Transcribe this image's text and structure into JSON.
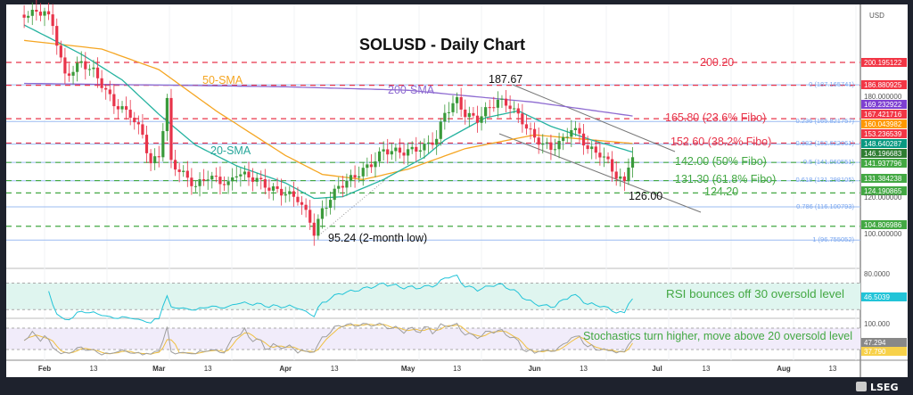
{
  "title": "SOLUSD - Daily Chart",
  "currency": "USD",
  "brand": "LSEG",
  "colors": {
    "up": "#3a9a3a",
    "down": "#e8344a",
    "sma20": "#26b3a0",
    "sma50": "#f5a623",
    "sma200": "#8e6bd1",
    "red": "#e8344a",
    "green": "#43a843",
    "fibo": "#9bbcf2",
    "rsi": "#22c4d8",
    "stochK": "#9e9e9e",
    "stochD": "#f0c040"
  },
  "annotations": {
    "level_200": "200.20",
    "sma50": "50-SMA",
    "sma200": "200-SMA",
    "sma20": "20-SMA",
    "high": "187.67",
    "fibo236": "165.80 (23.6% Fibo)",
    "fibo382": "152.60 (38.2% Fibo)",
    "fibo50": "142.00 (50% Fibo)",
    "fibo618": "131.30 (61.8% Fibo)",
    "level_124": "124.20",
    "low_recent": "126.00",
    "low_2m": "95.24 (2-month low)",
    "rsi_note": "RSI bounces off 30 oversold level",
    "stoch_note": "Stochastics turn higher, move above 20 oversold level"
  },
  "fibo_labels": [
    "0 (187.165741)",
    "0.236 (165.821757)",
    "0.382 (152.622061)",
    "0.5 (141.960551)",
    "0.618 (131.298105)",
    "0.786 (116.100793)",
    "1 (96.755052)"
  ],
  "price_axis": {
    "labels": [
      {
        "text": "200.195122",
        "color": "#f23645"
      },
      {
        "text": "186.880925",
        "color": "#f23645"
      },
      {
        "text": "180.000000",
        "color": ""
      },
      {
        "text": "169.232922",
        "color": "#7e3fd1"
      },
      {
        "text": "167.421716",
        "color": "#f23645"
      },
      {
        "text": "160.043982",
        "color": "#ff9800"
      },
      {
        "text": "153.236539",
        "color": "#f23645"
      },
      {
        "text": "148.640287",
        "color": "#089981"
      },
      {
        "text": "146.196683",
        "color": "#2e7d32"
      },
      {
        "text": "141.937796",
        "color": "#43a843"
      },
      {
        "text": "131.384238",
        "color": "#43a843"
      },
      {
        "text": "124.190865",
        "color": "#43a843"
      },
      {
        "text": "120.000000",
        "color": ""
      },
      {
        "text": "104.806986",
        "color": "#43a843"
      },
      {
        "text": "100.000000",
        "color": ""
      }
    ],
    "rsi_labels": [
      {
        "text": "80.0000",
        "color": ""
      },
      {
        "text": "46.5039",
        "color": "#22c4d8"
      }
    ],
    "stoch_labels": [
      {
        "text": "100.000",
        "color": ""
      },
      {
        "text": "47.294",
        "color": "#888888"
      },
      {
        "text": "37.790",
        "color": "#f7d14a"
      }
    ]
  },
  "time_axis": [
    {
      "label": "Feb",
      "date": "02-01",
      "bold": true
    },
    {
      "label": "13",
      "date": "02-13"
    },
    {
      "label": "Mar",
      "date": "03-01",
      "bold": true
    },
    {
      "label": "13",
      "date": "03-13"
    },
    {
      "label": "Apr",
      "date": "04-01",
      "bold": true
    },
    {
      "label": "13",
      "date": "04-13"
    },
    {
      "label": "May",
      "date": "05-01",
      "bold": true
    },
    {
      "label": "13",
      "date": "05-13"
    },
    {
      "label": "Jun",
      "date": "06-01",
      "bold": true
    },
    {
      "label": "13",
      "date": "06-13"
    },
    {
      "label": "Jul",
      "date": "07-01",
      "bold": true
    },
    {
      "label": "13",
      "date": "07-13"
    },
    {
      "label": "Aug",
      "date": "08-01",
      "bold": true
    },
    {
      "label": "13",
      "date": "08-13"
    }
  ],
  "chart_data": {
    "type": "candlestick",
    "title": "SOLUSD - Daily Chart",
    "y_unit": "USD",
    "ylim": [
      92,
      235
    ],
    "horizontal_levels": [
      {
        "value": 200.2,
        "color": "red"
      },
      {
        "value": 186.88,
        "color": "red"
      },
      {
        "value": 167.42,
        "color": "red"
      },
      {
        "value": 153.24,
        "color": "red"
      },
      {
        "value": 141.94,
        "color": "green"
      },
      {
        "value": 131.38,
        "color": "green"
      },
      {
        "value": 124.19,
        "color": "green"
      },
      {
        "value": 104.81,
        "color": "green"
      }
    ],
    "fibo_values": [
      187.17,
      165.82,
      152.62,
      141.96,
      131.3,
      116.1,
      96.76
    ],
    "closes_approx": [
      [
        "01-27",
        228
      ],
      [
        "02-01",
        230
      ],
      [
        "02-03",
        222
      ],
      [
        "02-06",
        192
      ],
      [
        "02-10",
        200
      ],
      [
        "02-13",
        195
      ],
      [
        "02-18",
        176
      ],
      [
        "02-22",
        170
      ],
      [
        "02-25",
        158
      ],
      [
        "02-27",
        141
      ],
      [
        "03-01",
        146
      ],
      [
        "03-03",
        178
      ],
      [
        "03-04",
        142
      ],
      [
        "03-10",
        128
      ],
      [
        "03-13",
        134
      ],
      [
        "03-18",
        129
      ],
      [
        "03-20",
        136
      ],
      [
        "03-25",
        132
      ],
      [
        "03-28",
        127
      ],
      [
        "04-01",
        124
      ],
      [
        "04-04",
        121
      ],
      [
        "04-07",
        108
      ],
      [
        "04-08",
        101
      ],
      [
        "04-10",
        114
      ],
      [
        "04-14",
        128
      ],
      [
        "04-18",
        134
      ],
      [
        "04-22",
        141
      ],
      [
        "04-25",
        149
      ],
      [
        "04-30",
        148
      ],
      [
        "05-05",
        151
      ],
      [
        "05-08",
        156
      ],
      [
        "05-10",
        171
      ],
      [
        "05-13",
        178
      ],
      [
        "05-15",
        170
      ],
      [
        "05-18",
        167
      ],
      [
        "05-20",
        172
      ],
      [
        "05-23",
        178
      ],
      [
        "05-26",
        175
      ],
      [
        "05-29",
        166
      ],
      [
        "06-01",
        156
      ],
      [
        "06-05",
        150
      ],
      [
        "06-08",
        155
      ],
      [
        "06-10",
        162
      ],
      [
        "06-12",
        158
      ],
      [
        "06-14",
        150
      ],
      [
        "06-17",
        147
      ],
      [
        "06-19",
        142
      ],
      [
        "06-21",
        134
      ],
      [
        "06-23",
        130
      ],
      [
        "06-24",
        141
      ],
      [
        "06-25",
        145
      ]
    ],
    "sma20": [
      [
        "01-27",
        222
      ],
      [
        "02-10",
        205
      ],
      [
        "02-20",
        190
      ],
      [
        "03-01",
        170
      ],
      [
        "03-10",
        152
      ],
      [
        "03-20",
        140
      ],
      [
        "04-01",
        130
      ],
      [
        "04-08",
        121
      ],
      [
        "04-15",
        122
      ],
      [
        "04-25",
        132
      ],
      [
        "05-05",
        145
      ],
      [
        "05-10",
        155
      ],
      [
        "05-20",
        168
      ],
      [
        "05-28",
        172
      ],
      [
        "06-05",
        163
      ],
      [
        "06-15",
        155
      ],
      [
        "06-25",
        148
      ]
    ],
    "sma50": [
      [
        "01-27",
        213
      ],
      [
        "02-15",
        208
      ],
      [
        "03-01",
        196
      ],
      [
        "03-15",
        172
      ],
      [
        "04-01",
        146
      ],
      [
        "04-10",
        135
      ],
      [
        "04-20",
        132
      ],
      [
        "05-01",
        138
      ],
      [
        "05-15",
        150
      ],
      [
        "06-01",
        158
      ],
      [
        "06-25",
        153
      ]
    ],
    "sma200": [
      [
        "01-27",
        188
      ],
      [
        "03-01",
        187
      ],
      [
        "04-01",
        186
      ],
      [
        "05-01",
        184
      ],
      [
        "06-01",
        177
      ],
      [
        "06-25",
        169
      ]
    ],
    "rsi_last": 46.5039,
    "rsi_band": [
      30,
      70
    ],
    "stoch_last": {
      "k": 47.294,
      "d": 37.79
    },
    "stoch_band": [
      20,
      80
    ]
  }
}
